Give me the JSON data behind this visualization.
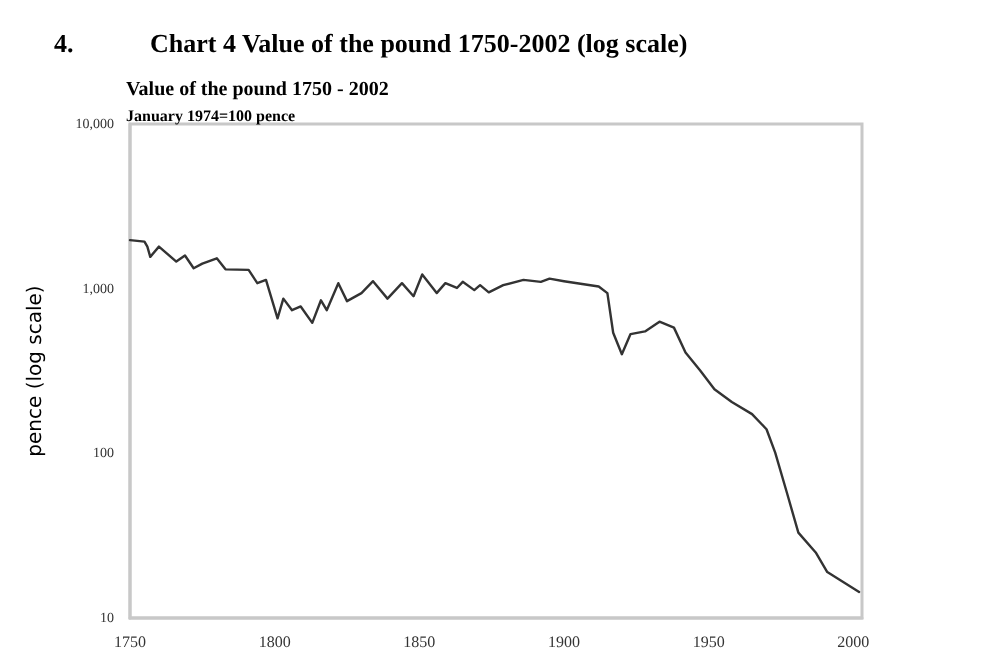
{
  "chart_data": {
    "type": "line",
    "title": "Chart 4 Value of the pound 1750-2002 (log scale)",
    "subtitle": "Value of the pound 1750 - 2002",
    "ylabel": "pence (log scale)",
    "annotations": [
      "4.",
      "January 1974=100 pence"
    ],
    "log": "y",
    "grid": false,
    "marker": "none",
    "line_style": "solid",
    "xlim": [
      1750,
      2003
    ],
    "xticks": [
      1750,
      1800,
      1850,
      1900,
      1950,
      2000
    ],
    "ylim": [
      10,
      10000
    ],
    "yticks": [
      {
        "value": 10,
        "label": "10"
      },
      {
        "value": 100,
        "label": "100"
      },
      {
        "value": 1000,
        "label": "1,000"
      },
      {
        "value": 10000,
        "label": "10,000"
      }
    ],
    "series": [
      {
        "color": "#333333",
        "x": [
          1750,
          1755,
          1756,
          1757,
          1760,
          1766,
          1769,
          1772,
          1775,
          1780,
          1783,
          1791,
          1794,
          1797,
          1801,
          1803,
          1806,
          1809,
          1813,
          1816,
          1818,
          1822,
          1825,
          1830,
          1834,
          1839,
          1844,
          1848,
          1851,
          1856,
          1859,
          1863,
          1865,
          1869,
          1871,
          1874,
          1879,
          1886,
          1892,
          1895,
          1900,
          1912,
          1915,
          1917,
          1920,
          1923,
          1928,
          1933,
          1938,
          1942,
          1947,
          1952,
          1958,
          1965,
          1970,
          1973,
          1977,
          1981,
          1987,
          1991,
          2002
        ],
        "values": [
          1970,
          1930,
          1800,
          1560,
          1800,
          1460,
          1590,
          1330,
          1420,
          1530,
          1310,
          1300,
          1080,
          1130,
          660,
          870,
          740,
          780,
          620,
          850,
          740,
          1080,
          840,
          940,
          1110,
          870,
          1080,
          900,
          1220,
          940,
          1080,
          1010,
          1100,
          980,
          1050,
          950,
          1050,
          1130,
          1100,
          1150,
          1110,
          1030,
          940,
          540,
          400,
          530,
          550,
          630,
          580,
          410,
          320,
          245,
          205,
          173,
          140,
          101,
          58,
          33,
          25,
          19,
          14.4
        ]
      }
    ]
  }
}
